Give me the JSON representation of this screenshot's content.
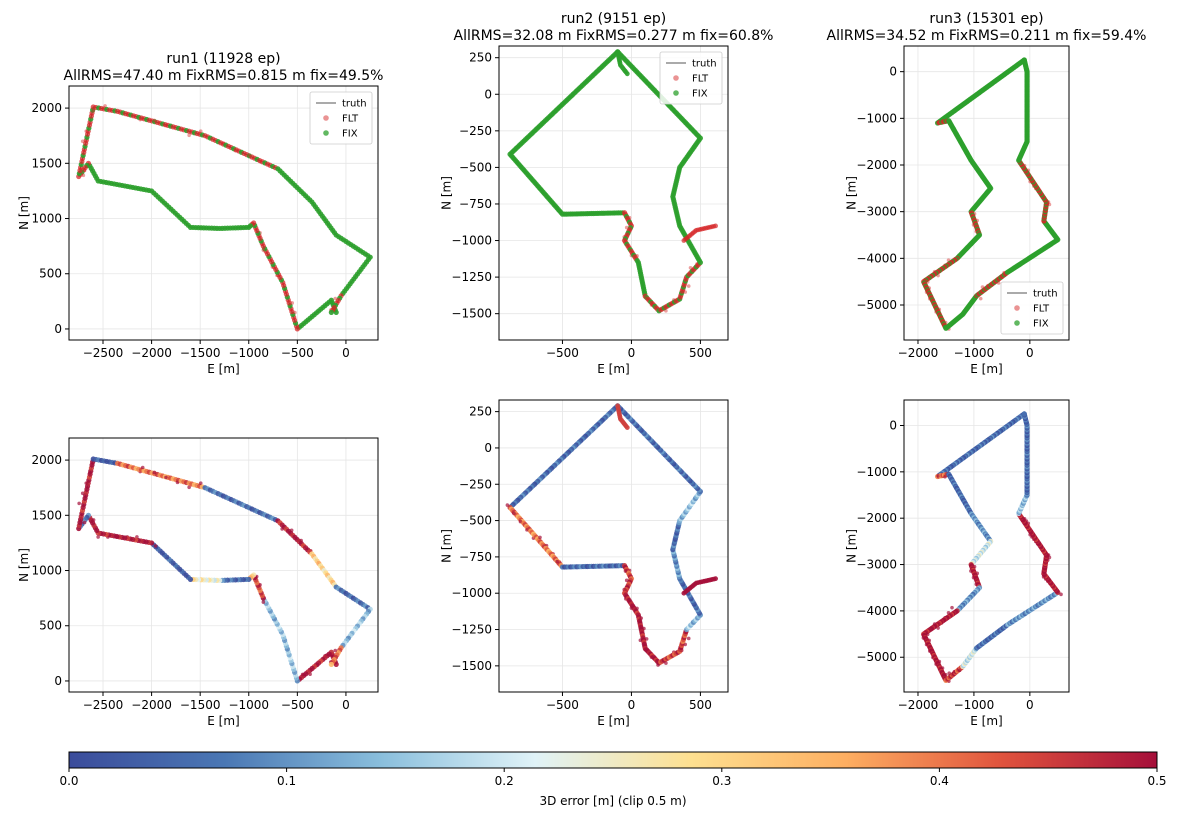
{
  "figure": {
    "colorbar": {
      "label": "3D error [m] (clip 0.5 m)",
      "ticks": [
        0.0,
        0.1,
        0.2,
        0.3,
        0.4,
        0.5
      ],
      "tick_labels": [
        "0.0",
        "0.1",
        "0.2",
        "0.3",
        "0.4",
        "0.5"
      ],
      "range": [
        0,
        0.5
      ],
      "colormap": [
        "#3b4c9b",
        "#4a77b4",
        "#89bedc",
        "#e0f3f8",
        "#fee090",
        "#fdae61",
        "#e0533d",
        "#a50f3a"
      ]
    },
    "colors": {
      "truth": "#555555",
      "FLT": "#d62728",
      "FIX": "#2ca02c",
      "grid": "#e6e6e6"
    }
  },
  "chart_data": [
    {
      "type": "scatter",
      "id": "run1",
      "title_lines": [
        "run1  (11928 ep)",
        "AllRMS=47.40 m   FixRMS=0.815 m   fix=49.5%"
      ],
      "xlabel": "E [m]",
      "ylabel": "N [m]",
      "xlim": [
        -2850,
        330
      ],
      "ylim": [
        -100,
        2200
      ],
      "xticks": [
        -2500,
        -2000,
        -1500,
        -1000,
        -500,
        0
      ],
      "xtick_labels": [
        "−2500",
        "−2000",
        "−1500",
        "−1000",
        "−500",
        "0"
      ],
      "yticks": [
        0,
        500,
        1000,
        1500,
        2000
      ],
      "ytick_labels": [
        "0",
        "500",
        "1000",
        "1500",
        "2000"
      ],
      "grid": true,
      "legend": {
        "placement": "top-right",
        "entries": [
          "truth",
          "FLT",
          "FIX"
        ]
      },
      "truth_path": [
        [
          -100,
          150
        ],
        [
          -150,
          260
        ],
        [
          -500,
          0
        ],
        [
          -650,
          420
        ],
        [
          -850,
          750
        ],
        [
          -950,
          960
        ],
        [
          -1000,
          920
        ],
        [
          -1300,
          910
        ],
        [
          -1600,
          920
        ],
        [
          -2000,
          1250
        ],
        [
          -2550,
          1340
        ],
        [
          -2650,
          1500
        ],
        [
          -2750,
          1380
        ],
        [
          -2600,
          2010
        ],
        [
          -2350,
          1970
        ],
        [
          -1450,
          1750
        ],
        [
          -700,
          1450
        ],
        [
          -350,
          1150
        ],
        [
          -100,
          850
        ],
        [
          250,
          650
        ],
        [
          -50,
          300
        ],
        [
          -150,
          150
        ]
      ],
      "flt_segments": [
        [
          2,
          6,
          0.15
        ],
        [
          11,
          13,
          0.35
        ],
        [
          13,
          14,
          0.25
        ],
        [
          14,
          15,
          0.4
        ],
        [
          15,
          16,
          0.2
        ],
        [
          20,
          21,
          0.25
        ]
      ],
      "error_segments": [
        [
          0,
          2,
          0.5
        ],
        [
          2,
          4,
          0.15
        ],
        [
          4,
          5,
          0.45
        ],
        [
          5,
          6,
          0.3
        ],
        [
          6,
          7,
          0.05
        ],
        [
          7,
          8,
          0.25
        ],
        [
          8,
          9,
          0.02
        ],
        [
          9,
          11,
          0.5
        ],
        [
          11,
          12,
          0.08
        ],
        [
          12,
          13,
          0.5
        ],
        [
          13,
          14,
          0.02
        ],
        [
          14,
          15,
          0.4
        ],
        [
          15,
          16,
          0.05
        ],
        [
          16,
          17,
          0.5
        ],
        [
          17,
          18,
          0.3
        ],
        [
          18,
          19,
          0.05
        ],
        [
          19,
          20,
          0.15
        ],
        [
          20,
          21,
          0.4
        ]
      ]
    },
    {
      "type": "scatter",
      "id": "run2",
      "title_lines": [
        "run2  (9151 ep)",
        "AllRMS=32.08 m   FixRMS=0.277 m   fix=60.8%"
      ],
      "xlabel": "E [m]",
      "ylabel": "N [m]",
      "xlim": [
        -960,
        700
      ],
      "ylim": [
        -1680,
        330
      ],
      "xticks": [
        -500,
        0,
        500
      ],
      "xtick_labels": [
        "−500",
        "0",
        "500"
      ],
      "yticks": [
        250,
        0,
        -250,
        -500,
        -750,
        -1000,
        -1250,
        -1500
      ],
      "ytick_labels": [
        "250",
        "0",
        "−250",
        "−500",
        "−750",
        "−1000",
        "−1250",
        "−1500"
      ],
      "grid": true,
      "legend": {
        "placement": "top-right",
        "entries": [
          "truth",
          "FLT",
          "FIX"
        ]
      },
      "truth_path": [
        [
          -100,
          290
        ],
        [
          -880,
          -410
        ],
        [
          -500,
          -820
        ],
        [
          -50,
          -810
        ],
        [
          0,
          -900
        ],
        [
          -50,
          -1000
        ],
        [
          50,
          -1150
        ],
        [
          100,
          -1380
        ],
        [
          200,
          -1480
        ],
        [
          350,
          -1400
        ],
        [
          400,
          -1250
        ],
        [
          500,
          -1150
        ],
        [
          350,
          -900
        ],
        [
          300,
          -700
        ],
        [
          350,
          -500
        ],
        [
          500,
          -300
        ],
        [
          -100,
          290
        ]
      ],
      "flt_segments": [
        [
          3,
          6,
          0.3
        ],
        [
          7,
          10,
          0.45
        ],
        [
          10,
          11,
          0.3
        ]
      ],
      "error_segments": [
        [
          0,
          1,
          0.05
        ],
        [
          1,
          2,
          0.4
        ],
        [
          2,
          3,
          0.05
        ],
        [
          3,
          5,
          0.45
        ],
        [
          5,
          7,
          0.5
        ],
        [
          7,
          8,
          0.5
        ],
        [
          8,
          10,
          0.45
        ],
        [
          10,
          11,
          0.15
        ],
        [
          11,
          12,
          0.05
        ],
        [
          12,
          13,
          0.1
        ],
        [
          13,
          14,
          0.05
        ],
        [
          14,
          15,
          0.15
        ],
        [
          15,
          16,
          0.05
        ]
      ],
      "extra_hook": [
        [
          -100,
          290
        ],
        [
          -80,
          200
        ],
        [
          -30,
          140
        ]
      ],
      "extra_tail": [
        [
          380,
          -1000
        ],
        [
          470,
          -930
        ],
        [
          610,
          -900
        ]
      ]
    },
    {
      "type": "scatter",
      "id": "run3",
      "title_lines": [
        "run3  (15301 ep)",
        "AllRMS=34.52 m   FixRMS=0.211 m   fix=59.4%"
      ],
      "xlabel": "E [m]",
      "ylabel": "N [m]",
      "xlim": [
        -2250,
        700
      ],
      "ylim": [
        -5750,
        550
      ],
      "xticks": [
        -2000,
        -1000,
        0
      ],
      "xtick_labels": [
        "−2000",
        "−1000",
        "0"
      ],
      "yticks": [
        0,
        -1000,
        -2000,
        -3000,
        -4000,
        -5000
      ],
      "ytick_labels": [
        "0",
        "−1000",
        "−2000",
        "−3000",
        "−4000",
        "−5000"
      ],
      "grid": true,
      "legend": {
        "placement": "bottom-right",
        "entries": [
          "truth",
          "FLT",
          "FIX"
        ]
      },
      "truth_path": [
        [
          -100,
          250
        ],
        [
          -1650,
          -1100
        ],
        [
          -1450,
          -1050
        ],
        [
          -1050,
          -1900
        ],
        [
          -700,
          -2500
        ],
        [
          -1050,
          -3000
        ],
        [
          -900,
          -3500
        ],
        [
          -1300,
          -4000
        ],
        [
          -1900,
          -4500
        ],
        [
          -1500,
          -5500
        ],
        [
          -1200,
          -5200
        ],
        [
          -950,
          -4800
        ],
        [
          -400,
          -4300
        ],
        [
          500,
          -3600
        ],
        [
          250,
          -3200
        ],
        [
          300,
          -2800
        ],
        [
          -200,
          -1900
        ],
        [
          -50,
          -1500
        ],
        [
          -50,
          0
        ],
        [
          -100,
          250
        ]
      ],
      "flt_segments": [
        [
          1,
          2,
          0.2
        ],
        [
          5,
          6,
          0.35
        ],
        [
          7,
          9,
          0.5
        ],
        [
          11,
          12,
          0.25
        ],
        [
          14,
          16,
          0.4
        ]
      ],
      "error_segments": [
        [
          0,
          1,
          0.05
        ],
        [
          1,
          2,
          0.4
        ],
        [
          2,
          3,
          0.05
        ],
        [
          3,
          4,
          0.1
        ],
        [
          4,
          5,
          0.2
        ],
        [
          5,
          6,
          0.5
        ],
        [
          6,
          7,
          0.1
        ],
        [
          7,
          9,
          0.5
        ],
        [
          9,
          10,
          0.45
        ],
        [
          10,
          11,
          0.2
        ],
        [
          11,
          12,
          0.05
        ],
        [
          12,
          13,
          0.1
        ],
        [
          13,
          14,
          0.5
        ],
        [
          14,
          16,
          0.5
        ],
        [
          16,
          17,
          0.15
        ],
        [
          17,
          19,
          0.05
        ]
      ]
    }
  ]
}
